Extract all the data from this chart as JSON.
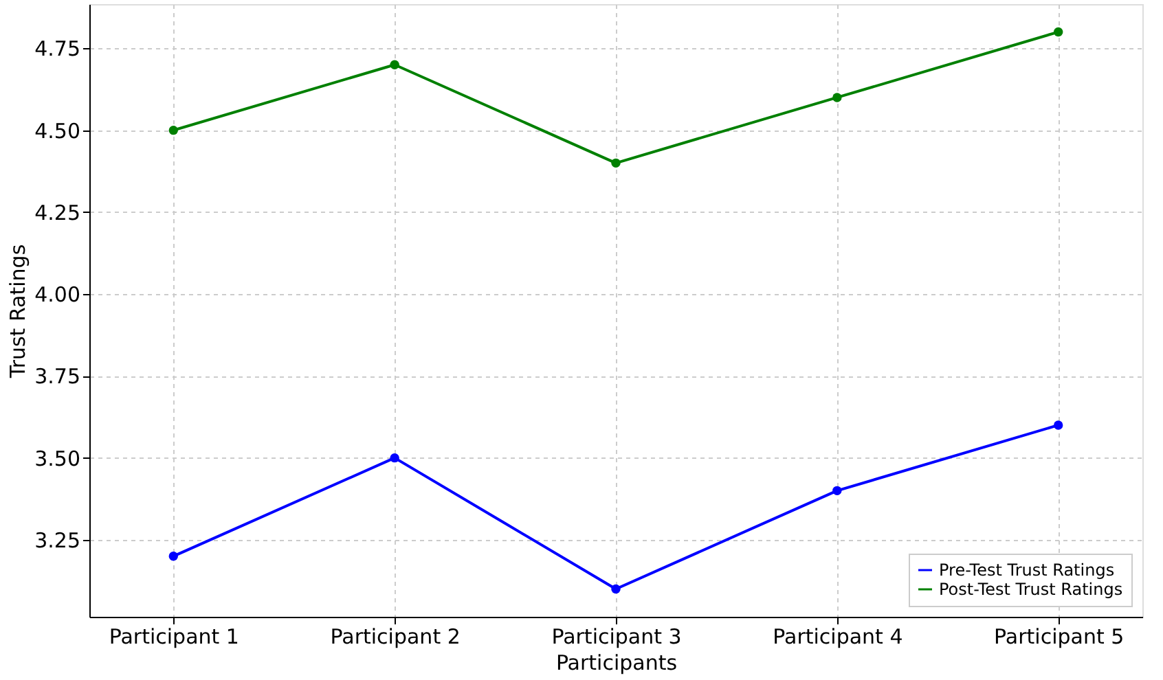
{
  "chart_data": {
    "type": "line",
    "xlabel": "Participants",
    "ylabel": "Trust Ratings",
    "categories": [
      "Participant 1",
      "Participant 2",
      "Participant 3",
      "Participant 4",
      "Participant 5"
    ],
    "series": [
      {
        "name": "Pre-Test Trust Ratings",
        "color": "#0000ff",
        "values": [
          3.2,
          3.5,
          3.1,
          3.4,
          3.6
        ]
      },
      {
        "name": "Post-Test Trust Ratings",
        "color": "#008000",
        "values": [
          4.5,
          4.7,
          4.4,
          4.6,
          4.8
        ]
      }
    ],
    "ylim": [
      3.015,
      4.885
    ],
    "yticks": [
      3.25,
      {
        "value": 3.5,
        "label": "3.50"
      },
      3.75,
      {
        "value": 4,
        "label": "4.00"
      },
      4.25,
      {
        "value": 4.5,
        "label": "4.50"
      },
      4.75
    ],
    "grid": true,
    "legend": "bottom right",
    "marker": "circle",
    "line_style": "solid"
  }
}
